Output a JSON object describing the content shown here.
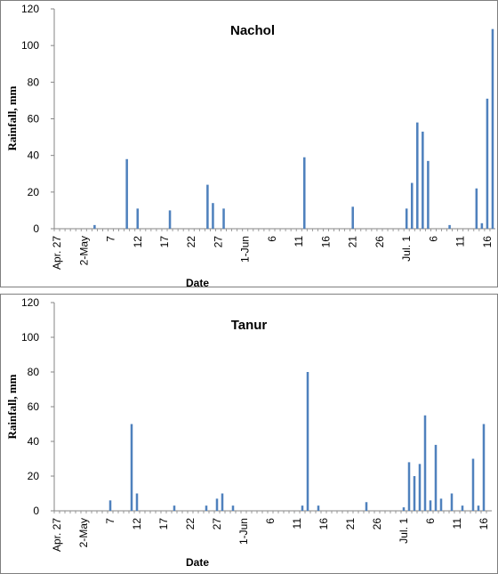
{
  "chart_data": [
    {
      "type": "bar",
      "title": "Nachol",
      "xlabel": "Date",
      "ylabel": "Rainfall, mm",
      "ylim": [
        0,
        120
      ],
      "yticks": [
        0,
        20,
        40,
        60,
        80,
        100,
        120
      ],
      "xlim": [
        "Apr. 27",
        "Jul. 17"
      ],
      "xtick_labels": [
        "Apr. 27",
        "2-May",
        "7",
        "12",
        "17",
        "22",
        "27",
        "1-Jun",
        "6",
        "11",
        "16",
        "21",
        "26",
        "Jul. 1",
        "6",
        "11",
        "16"
      ],
      "bar_color": "#4f81bd",
      "dates": [
        "May 4",
        "May 10",
        "May 12",
        "May 18",
        "May 25",
        "May 26",
        "May 28",
        "Jun 12",
        "Jun 21",
        "Jul 1",
        "Jul 2",
        "Jul 3",
        "Jul 4",
        "Jul 5",
        "Jul 9",
        "Jul 14",
        "Jul 15",
        "Jul 16",
        "Jul 17"
      ],
      "values": [
        2,
        38,
        11,
        10,
        24,
        14,
        11,
        39,
        12,
        11,
        25,
        58,
        53,
        37,
        2,
        22,
        3,
        71,
        109
      ]
    },
    {
      "type": "bar",
      "title": "Tanur",
      "xlabel": "Date",
      "ylabel": "Rainfall, mm",
      "ylim": [
        0,
        120
      ],
      "yticks": [
        0,
        20,
        40,
        60,
        80,
        100,
        120
      ],
      "xlim": [
        "Apr. 27",
        "Jul. 17"
      ],
      "xtick_labels": [
        "Apr. 27",
        "2-May",
        "7",
        "12",
        "17",
        "22",
        "27",
        "1-Jun",
        "6",
        "11",
        "16",
        "21",
        "26",
        "Jul. 1",
        "6",
        "11",
        "16"
      ],
      "bar_color": "#4f81bd",
      "dates": [
        "May 7",
        "May 11",
        "May 12",
        "May 19",
        "May 25",
        "May 27",
        "May 28",
        "May 30",
        "Jun 12",
        "Jun 13",
        "Jun 15",
        "Jun 24",
        "Jul 1",
        "Jul 2",
        "Jul 3",
        "Jul 4",
        "Jul 5",
        "Jul 6",
        "Jul 7",
        "Jul 8",
        "Jul 10",
        "Jul 12",
        "Jul 14",
        "Jul 15",
        "Jul 16"
      ],
      "values": [
        6,
        50,
        10,
        3,
        3,
        7,
        10,
        3,
        3,
        80,
        3,
        5,
        2,
        28,
        20,
        27,
        55,
        6,
        38,
        7,
        10,
        3,
        30,
        3,
        50
      ]
    }
  ]
}
